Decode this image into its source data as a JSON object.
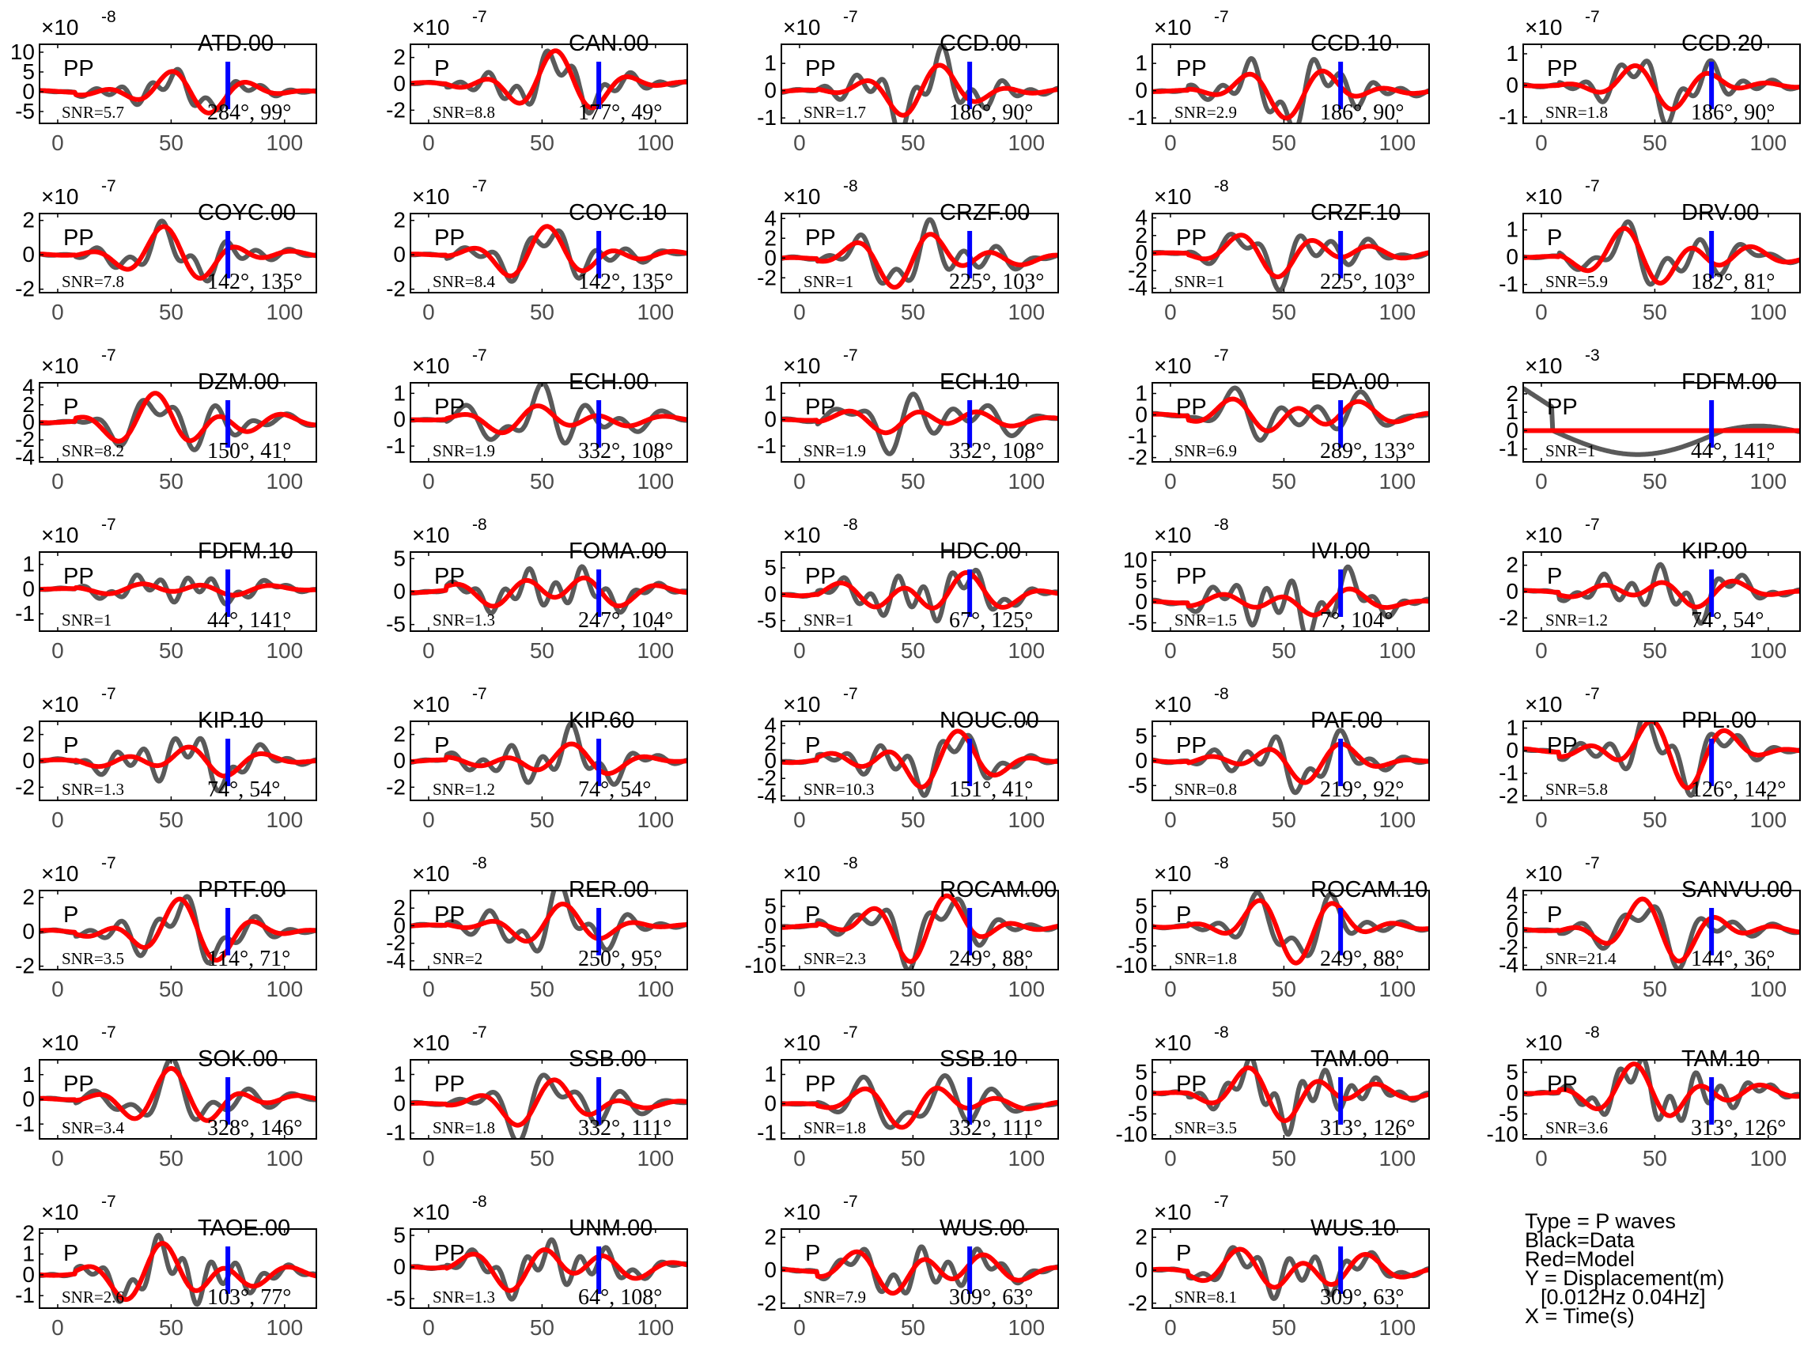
{
  "figure": {
    "legend": {
      "type_line": "Type = P waves",
      "black_line": "Black=Data",
      "red_line": "Red=Model",
      "y_line": "Y = Displacement(m)",
      "band_line": "[0.012Hz 0.04Hz]",
      "x_line": "X = Time(s)"
    },
    "colors": {
      "data": "#5a5a5a",
      "model": "#ff0000",
      "marker": "#0000ff",
      "axis": "#000000",
      "tick_label": "#4d4d4d"
    }
  },
  "chart_data": [
    {
      "type": "line",
      "station": "ATD.00",
      "phase": "PP",
      "snr": "SNR=5.7",
      "az_dist": "284°, 99°",
      "exponent": "-8",
      "yticks": [
        10,
        5,
        0,
        -5
      ],
      "ylim": [
        -8,
        12
      ],
      "xlim": [
        -8,
        114
      ],
      "xticks": [
        0,
        50,
        100
      ],
      "marker_x": 75,
      "data_amp": 0.45,
      "model_amp": 0.5,
      "seed": 1
    },
    {
      "type": "line",
      "station": "CAN.00",
      "phase": "P",
      "snr": "SNR=8.8",
      "az_dist": "177°, 49°",
      "exponent": "-7",
      "yticks": [
        2,
        0,
        -2
      ],
      "ylim": [
        -3,
        3
      ],
      "xlim": [
        -8,
        114
      ],
      "xticks": [
        0,
        50,
        100
      ],
      "marker_x": 75,
      "data_amp": 0.8,
      "model_amp": 0.85,
      "seed": 2
    },
    {
      "type": "line",
      "station": "CCD.00",
      "phase": "PP",
      "snr": "SNR=1.7",
      "az_dist": "186°, 90°",
      "exponent": "-7",
      "yticks": [
        1,
        0,
        -1
      ],
      "ylim": [
        -1.2,
        1.7
      ],
      "xlim": [
        -8,
        114
      ],
      "xticks": [
        0,
        50,
        100
      ],
      "marker_x": 75,
      "data_amp": 0.85,
      "model_amp": 0.6,
      "seed": 3
    },
    {
      "type": "line",
      "station": "CCD.10",
      "phase": "PP",
      "snr": "SNR=2.9",
      "az_dist": "186°, 90°",
      "exponent": "-7",
      "yticks": [
        1,
        0,
        -1
      ],
      "ylim": [
        -1.2,
        1.7
      ],
      "xlim": [
        -8,
        114
      ],
      "xticks": [
        0,
        50,
        100
      ],
      "marker_x": 75,
      "data_amp": 0.85,
      "model_amp": 0.6,
      "seed": 4
    },
    {
      "type": "line",
      "station": "CCD.20",
      "phase": "PP",
      "snr": "SNR=1.8",
      "az_dist": "186°, 90°",
      "exponent": "-7",
      "yticks": [
        1,
        0,
        -1
      ],
      "ylim": [
        -1.2,
        1.3
      ],
      "xlim": [
        -8,
        114
      ],
      "xticks": [
        0,
        50,
        100
      ],
      "marker_x": 75,
      "data_amp": 0.85,
      "model_amp": 0.6,
      "seed": 5
    },
    {
      "type": "line",
      "station": "COYC.00",
      "phase": "PP",
      "snr": "SNR=7.8",
      "az_dist": "142°, 135°",
      "exponent": "-7",
      "yticks": [
        2,
        0,
        -2
      ],
      "ylim": [
        -2.2,
        2.4
      ],
      "xlim": [
        -8,
        114
      ],
      "xticks": [
        0,
        50,
        100
      ],
      "marker_x": 75,
      "data_amp": 0.7,
      "model_amp": 0.72,
      "seed": 6
    },
    {
      "type": "line",
      "station": "COYC.10",
      "phase": "PP",
      "snr": "SNR=8.4",
      "az_dist": "142°, 135°",
      "exponent": "-7",
      "yticks": [
        2,
        0,
        -2
      ],
      "ylim": [
        -2.2,
        2.4
      ],
      "xlim": [
        -8,
        114
      ],
      "xticks": [
        0,
        50,
        100
      ],
      "marker_x": 75,
      "data_amp": 0.7,
      "model_amp": 0.72,
      "seed": 7
    },
    {
      "type": "line",
      "station": "CRZF.00",
      "phase": "PP",
      "snr": "SNR=1",
      "az_dist": "225°, 103°",
      "exponent": "-8",
      "yticks": [
        4,
        2,
        0,
        -2
      ],
      "ylim": [
        -3.5,
        4.5
      ],
      "xlim": [
        -8,
        114
      ],
      "xticks": [
        0,
        50,
        100
      ],
      "marker_x": 75,
      "data_amp": 0.85,
      "model_amp": 0.75,
      "seed": 8
    },
    {
      "type": "line",
      "station": "CRZF.10",
      "phase": "PP",
      "snr": "SNR=1",
      "az_dist": "225°, 103°",
      "exponent": "-8",
      "yticks": [
        4,
        2,
        0,
        -2,
        -4
      ],
      "ylim": [
        -4.5,
        4.5
      ],
      "xlim": [
        -8,
        114
      ],
      "xticks": [
        0,
        50,
        100
      ],
      "marker_x": 75,
      "data_amp": 0.85,
      "model_amp": 0.7,
      "seed": 9
    },
    {
      "type": "line",
      "station": "DRV.00",
      "phase": "P",
      "snr": "SNR=5.9",
      "az_dist": "182°, 81°",
      "exponent": "-7",
      "yticks": [
        1,
        0,
        -1
      ],
      "ylim": [
        -1.3,
        1.6
      ],
      "xlim": [
        -8,
        114
      ],
      "xticks": [
        0,
        50,
        100
      ],
      "marker_x": 75,
      "data_amp": 0.85,
      "model_amp": 0.85,
      "seed": 10
    },
    {
      "type": "line",
      "station": "DZM.00",
      "phase": "P",
      "snr": "SNR=8.2",
      "az_dist": "150°, 41°",
      "exponent": "-7",
      "yticks": [
        4,
        2,
        0,
        -2,
        -4
      ],
      "ylim": [
        -4.5,
        4.5
      ],
      "xlim": [
        -8,
        114
      ],
      "xticks": [
        0,
        50,
        100
      ],
      "marker_x": 75,
      "data_amp": 0.85,
      "model_amp": 0.88,
      "seed": 11
    },
    {
      "type": "line",
      "station": "ECH.00",
      "phase": "PP",
      "snr": "SNR=1.9",
      "az_dist": "332°, 108°",
      "exponent": "-7",
      "yticks": [
        1,
        0,
        -1
      ],
      "ylim": [
        -1.6,
        1.4
      ],
      "xlim": [
        -8,
        114
      ],
      "xticks": [
        0,
        50,
        100
      ],
      "marker_x": 75,
      "data_amp": 0.9,
      "model_amp": 0.45,
      "seed": 12
    },
    {
      "type": "line",
      "station": "ECH.10",
      "phase": "PP",
      "snr": "SNR=1.9",
      "az_dist": "332°, 108°",
      "exponent": "-7",
      "yticks": [
        1,
        0,
        -1
      ],
      "ylim": [
        -1.6,
        1.4
      ],
      "xlim": [
        -8,
        114
      ],
      "xticks": [
        0,
        50,
        100
      ],
      "marker_x": 75,
      "data_amp": 0.9,
      "model_amp": 0.45,
      "seed": 13
    },
    {
      "type": "line",
      "station": "EDA.00",
      "phase": "PP",
      "snr": "SNR=6.9",
      "az_dist": "289°, 133°",
      "exponent": "-7",
      "yticks": [
        1,
        0,
        -1,
        -2
      ],
      "ylim": [
        -2.2,
        1.5
      ],
      "xlim": [
        -8,
        114
      ],
      "xticks": [
        0,
        50,
        100
      ],
      "marker_x": 75,
      "data_amp": 0.8,
      "model_amp": 0.6,
      "seed": 14
    },
    {
      "type": "line",
      "station": "FDFM.00",
      "phase": "PP",
      "snr": "SNR=1",
      "az_dist": "44°, 141°",
      "exponent": "-3",
      "yticks": [
        2,
        1,
        0,
        -1
      ],
      "ylim": [
        -1.7,
        2.6
      ],
      "xlim": [
        -8,
        114
      ],
      "xticks": [
        0,
        50,
        100
      ],
      "marker_x": 75,
      "data_amp": 0,
      "model_amp": 0,
      "seed": 15
    },
    {
      "type": "line",
      "station": "FDFM.10",
      "phase": "PP",
      "snr": "SNR=1",
      "az_dist": "44°, 141°",
      "exponent": "-7",
      "yticks": [
        1,
        0,
        -1
      ],
      "ylim": [
        -1.7,
        1.5
      ],
      "xlim": [
        -8,
        114
      ],
      "xticks": [
        0,
        50,
        100
      ],
      "marker_x": 75,
      "data_amp": 0.5,
      "model_amp": 0.25,
      "seed": 16
    },
    {
      "type": "line",
      "station": "FOMA.00",
      "phase": "PP",
      "snr": "SNR=1.3",
      "az_dist": "247°, 104°",
      "exponent": "-8",
      "yticks": [
        5,
        0,
        -5
      ],
      "ylim": [
        -6,
        6
      ],
      "xlim": [
        -8,
        114
      ],
      "xticks": [
        0,
        50,
        100
      ],
      "marker_x": 75,
      "data_amp": 0.8,
      "model_amp": 0.7,
      "seed": 17
    },
    {
      "type": "line",
      "station": "HDC.00",
      "phase": "PP",
      "snr": "SNR=1",
      "az_dist": "67°, 125°",
      "exponent": "-8",
      "yticks": [
        5,
        0,
        -5
      ],
      "ylim": [
        -7,
        8
      ],
      "xlim": [
        -8,
        114
      ],
      "xticks": [
        0,
        50,
        100
      ],
      "marker_x": 75,
      "data_amp": 0.85,
      "model_amp": 0.75,
      "seed": 18
    },
    {
      "type": "line",
      "station": "IVI.00",
      "phase": "PP",
      "snr": "SNR=1.5",
      "az_dist": "7°, 104°",
      "exponent": "-8",
      "yticks": [
        10,
        5,
        0,
        -5
      ],
      "ylim": [
        -7,
        12
      ],
      "xlim": [
        -8,
        114
      ],
      "xticks": [
        0,
        50,
        100
      ],
      "marker_x": 75,
      "data_amp": 0.85,
      "model_amp": 0.4,
      "seed": 19
    },
    {
      "type": "line",
      "station": "KIP.00",
      "phase": "P",
      "snr": "SNR=1.2",
      "az_dist": "74°, 54°",
      "exponent": "-7",
      "yticks": [
        2,
        0,
        -2
      ],
      "ylim": [
        -3,
        3
      ],
      "xlim": [
        -8,
        114
      ],
      "xticks": [
        0,
        50,
        100
      ],
      "marker_x": 75,
      "data_amp": 0.85,
      "model_amp": 0.5,
      "seed": 20
    },
    {
      "type": "line",
      "station": "KIP.10",
      "phase": "P",
      "snr": "SNR=1.3",
      "az_dist": "74°, 54°",
      "exponent": "-7",
      "yticks": [
        2,
        0,
        -2
      ],
      "ylim": [
        -3,
        3
      ],
      "xlim": [
        -8,
        114
      ],
      "xticks": [
        0,
        50,
        100
      ],
      "marker_x": 75,
      "data_amp": 0.85,
      "model_amp": 0.5,
      "seed": 21
    },
    {
      "type": "line",
      "station": "KIP.60",
      "phase": "P",
      "snr": "SNR=1.2",
      "az_dist": "74°, 54°",
      "exponent": "-7",
      "yticks": [
        2,
        0,
        -2
      ],
      "ylim": [
        -3,
        3
      ],
      "xlim": [
        -8,
        114
      ],
      "xticks": [
        0,
        50,
        100
      ],
      "marker_x": 75,
      "data_amp": 0.85,
      "model_amp": 0.5,
      "seed": 22
    },
    {
      "type": "line",
      "station": "NOUC.00",
      "phase": "P",
      "snr": "SNR=10.3",
      "az_dist": "151°, 41°",
      "exponent": "-7",
      "yticks": [
        4,
        2,
        0,
        -2,
        -4
      ],
      "ylim": [
        -4.5,
        4.5
      ],
      "xlim": [
        -8,
        114
      ],
      "xticks": [
        0,
        50,
        100
      ],
      "marker_x": 75,
      "data_amp": 0.85,
      "model_amp": 0.88,
      "seed": 23
    },
    {
      "type": "line",
      "station": "PAF.00",
      "phase": "PP",
      "snr": "SNR=0.8",
      "az_dist": "219°, 92°",
      "exponent": "-8",
      "yticks": [
        5,
        0,
        -5
      ],
      "ylim": [
        -8,
        8
      ],
      "xlim": [
        -8,
        114
      ],
      "xticks": [
        0,
        50,
        100
      ],
      "marker_x": 75,
      "data_amp": 0.85,
      "model_amp": 0.6,
      "seed": 24
    },
    {
      "type": "line",
      "station": "PPL.00",
      "phase": "PP",
      "snr": "SNR=5.8",
      "az_dist": "126°, 142°",
      "exponent": "-7",
      "yticks": [
        1,
        0,
        -1,
        -2
      ],
      "ylim": [
        -2.2,
        1.3
      ],
      "xlim": [
        -8,
        114
      ],
      "xticks": [
        0,
        50,
        100
      ],
      "marker_x": 75,
      "data_amp": 0.8,
      "model_amp": 0.8,
      "seed": 25
    },
    {
      "type": "line",
      "station": "PPTF.00",
      "phase": "P",
      "snr": "SNR=3.5",
      "az_dist": "114°, 71°",
      "exponent": "-7",
      "yticks": [
        2,
        0,
        -2
      ],
      "ylim": [
        -2.2,
        2.4
      ],
      "xlim": [
        -8,
        114
      ],
      "xticks": [
        0,
        50,
        100
      ],
      "marker_x": 75,
      "data_amp": 0.85,
      "model_amp": 0.85,
      "seed": 26
    },
    {
      "type": "line",
      "station": "RER.00",
      "phase": "PP",
      "snr": "SNR=2",
      "az_dist": "250°, 95°",
      "exponent": "-8",
      "yticks": [
        2,
        0,
        -2,
        -4
      ],
      "ylim": [
        -5,
        4
      ],
      "xlim": [
        -8,
        114
      ],
      "xticks": [
        0,
        50,
        100
      ],
      "marker_x": 75,
      "data_amp": 0.85,
      "model_amp": 0.5,
      "seed": 27
    },
    {
      "type": "line",
      "station": "ROCAM.00",
      "phase": "P",
      "snr": "SNR=2.3",
      "az_dist": "249°, 88°",
      "exponent": "-8",
      "yticks": [
        5,
        0,
        -5,
        -10
      ],
      "ylim": [
        -11,
        9
      ],
      "xlim": [
        -8,
        114
      ],
      "xticks": [
        0,
        50,
        100
      ],
      "marker_x": 75,
      "data_amp": 0.85,
      "model_amp": 0.85,
      "seed": 28
    },
    {
      "type": "line",
      "station": "ROCAM.10",
      "phase": "P",
      "snr": "SNR=1.8",
      "az_dist": "249°, 88°",
      "exponent": "-8",
      "yticks": [
        5,
        0,
        -5,
        -10
      ],
      "ylim": [
        -11,
        9
      ],
      "xlim": [
        -8,
        114
      ],
      "xticks": [
        0,
        50,
        100
      ],
      "marker_x": 75,
      "data_amp": 0.85,
      "model_amp": 0.85,
      "seed": 29
    },
    {
      "type": "line",
      "station": "SANVU.00",
      "phase": "P",
      "snr": "SNR=21.4",
      "az_dist": "144°, 36°",
      "exponent": "-7",
      "yticks": [
        4,
        2,
        0,
        -2,
        -4
      ],
      "ylim": [
        -4.5,
        4.5
      ],
      "xlim": [
        -8,
        114
      ],
      "xticks": [
        0,
        50,
        100
      ],
      "marker_x": 75,
      "data_amp": 0.85,
      "model_amp": 0.88,
      "seed": 30
    },
    {
      "type": "line",
      "station": "SOK.00",
      "phase": "PP",
      "snr": "SNR=3.4",
      "az_dist": "328°, 146°",
      "exponent": "-7",
      "yticks": [
        1,
        0,
        -1
      ],
      "ylim": [
        -1.6,
        1.6
      ],
      "xlim": [
        -8,
        114
      ],
      "xticks": [
        0,
        50,
        100
      ],
      "marker_x": 75,
      "data_amp": 0.85,
      "model_amp": 0.8,
      "seed": 31
    },
    {
      "type": "line",
      "station": "SSB.00",
      "phase": "PP",
      "snr": "SNR=1.8",
      "az_dist": "332°, 111°",
      "exponent": "-7",
      "yticks": [
        1,
        0,
        -1
      ],
      "ylim": [
        -1.2,
        1.5
      ],
      "xlim": [
        -8,
        114
      ],
      "xticks": [
        0,
        50,
        100
      ],
      "marker_x": 75,
      "data_amp": 0.85,
      "model_amp": 0.6,
      "seed": 32
    },
    {
      "type": "line",
      "station": "SSB.10",
      "phase": "PP",
      "snr": "SNR=1.8",
      "az_dist": "332°, 111°",
      "exponent": "-7",
      "yticks": [
        1,
        0,
        -1
      ],
      "ylim": [
        -1.2,
        1.5
      ],
      "xlim": [
        -8,
        114
      ],
      "xticks": [
        0,
        50,
        100
      ],
      "marker_x": 75,
      "data_amp": 0.85,
      "model_amp": 0.6,
      "seed": 33
    },
    {
      "type": "line",
      "station": "TAM.00",
      "phase": "PP",
      "snr": "SNR=3.5",
      "az_dist": "313°, 126°",
      "exponent": "-8",
      "yticks": [
        5,
        0,
        -5,
        -10
      ],
      "ylim": [
        -11,
        8
      ],
      "xlim": [
        -8,
        114
      ],
      "xticks": [
        0,
        50,
        100
      ],
      "marker_x": 75,
      "data_amp": 0.85,
      "model_amp": 0.75,
      "seed": 34
    },
    {
      "type": "line",
      "station": "TAM.10",
      "phase": "PP",
      "snr": "SNR=3.6",
      "az_dist": "313°, 126°",
      "exponent": "-8",
      "yticks": [
        5,
        0,
        -5,
        -10
      ],
      "ylim": [
        -11,
        8
      ],
      "xlim": [
        -8,
        114
      ],
      "xticks": [
        0,
        50,
        100
      ],
      "marker_x": 75,
      "data_amp": 0.85,
      "model_amp": 0.75,
      "seed": 35
    },
    {
      "type": "line",
      "station": "TAOE.00",
      "phase": "P",
      "snr": "SNR=2.6",
      "az_dist": "103°, 77°",
      "exponent": "-7",
      "yticks": [
        2,
        1,
        0,
        -1
      ],
      "ylim": [
        -1.6,
        2.2
      ],
      "xlim": [
        -8,
        114
      ],
      "xticks": [
        0,
        50,
        100
      ],
      "marker_x": 75,
      "data_amp": 0.85,
      "model_amp": 0.85,
      "seed": 36
    },
    {
      "type": "line",
      "station": "UNM.00",
      "phase": "PP",
      "snr": "SNR=1.3",
      "az_dist": "64°, 108°",
      "exponent": "-8",
      "yticks": [
        5,
        0,
        -5
      ],
      "ylim": [
        -6.5,
        6
      ],
      "xlim": [
        -8,
        114
      ],
      "xticks": [
        0,
        50,
        100
      ],
      "marker_x": 75,
      "data_amp": 0.85,
      "model_amp": 0.8,
      "seed": 37
    },
    {
      "type": "line",
      "station": "WUS.00",
      "phase": "P",
      "snr": "SNR=7.9",
      "az_dist": "309°, 63°",
      "exponent": "-7",
      "yticks": [
        2,
        0,
        -2
      ],
      "ylim": [
        -2.3,
        2.5
      ],
      "xlim": [
        -8,
        114
      ],
      "xticks": [
        0,
        50,
        100
      ],
      "marker_x": 75,
      "data_amp": 0.85,
      "model_amp": 0.85,
      "seed": 38
    },
    {
      "type": "line",
      "station": "WUS.10",
      "phase": "P",
      "snr": "SNR=8.1",
      "az_dist": "309°, 63°",
      "exponent": "-7",
      "yticks": [
        2,
        0,
        -2
      ],
      "ylim": [
        -2.3,
        2.5
      ],
      "xlim": [
        -8,
        114
      ],
      "xticks": [
        0,
        50,
        100
      ],
      "marker_x": 75,
      "data_amp": 0.85,
      "model_amp": 0.85,
      "seed": 39
    }
  ]
}
